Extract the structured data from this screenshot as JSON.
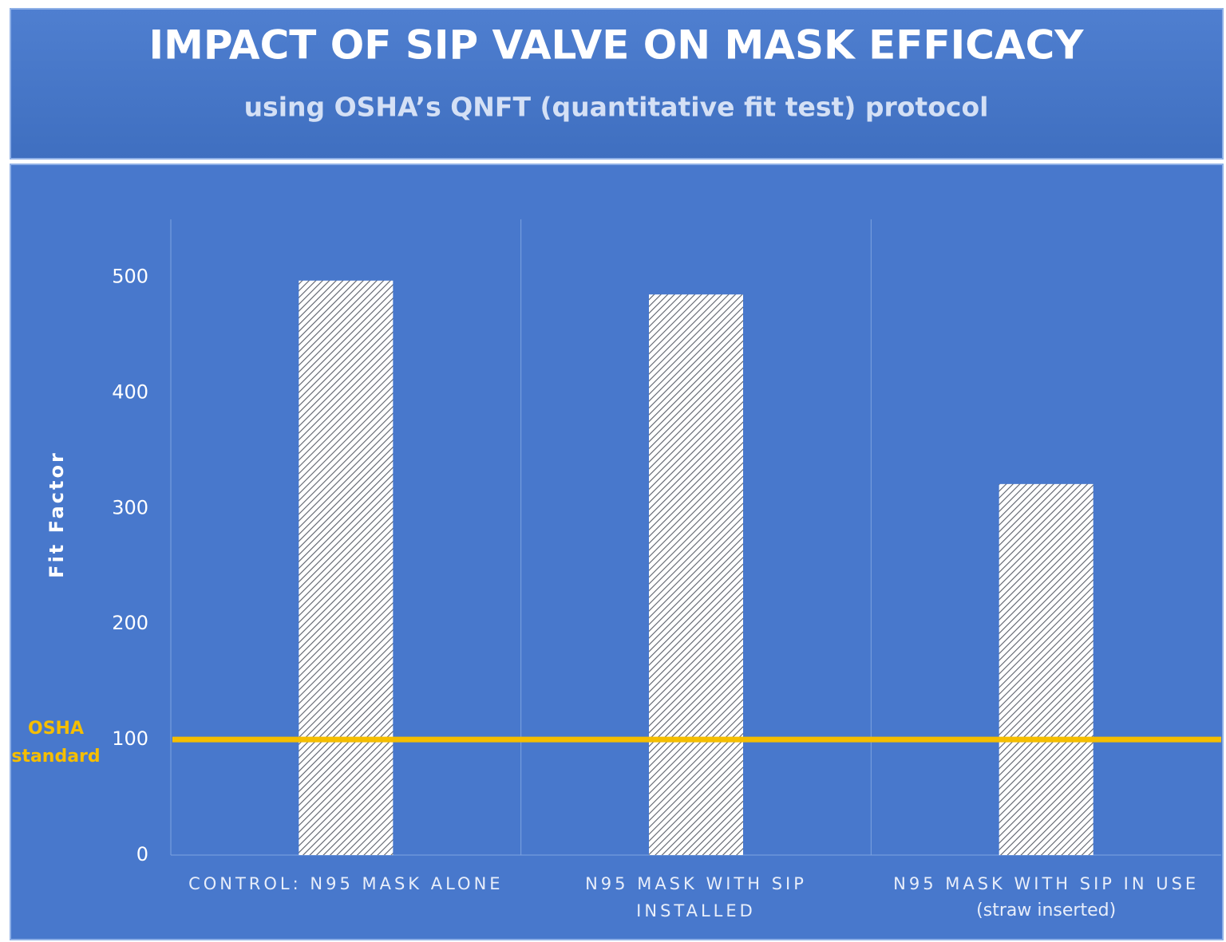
{
  "chart_data": {
    "type": "bar",
    "title": "IMPACT OF SIP VALVE ON MASK EFFICACY",
    "subtitle": "using OSHA’s QNFT (quantitative fit test) protocol",
    "y_label": "Fit Factor",
    "categories": [
      "CONTROL: N95 MASK ALONE",
      "N95 MASK WITH SIP INSTALLED",
      "N95 MASK WITH SIP IN USE"
    ],
    "category_notes": [
      null,
      null,
      "(straw inserted)"
    ],
    "values": [
      497,
      485,
      321
    ],
    "color": "#ffffff",
    "hatch": true,
    "hatch_color": "#5a5f6a",
    "ylim": [
      0,
      550
    ],
    "yticks": [
      0,
      100,
      200,
      300,
      400,
      500
    ],
    "grid": false,
    "reference_line": {
      "value": 100,
      "label_lines": [
        "OSHA",
        "standard"
      ],
      "color": "#f5be00"
    }
  }
}
